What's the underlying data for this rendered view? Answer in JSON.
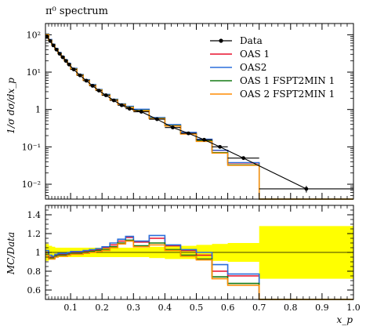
{
  "chart_data": [
    {
      "type": "line",
      "title": "π⁰ spectrum",
      "ylabel": "1/σ dσ/dx_p",
      "yscale": "log",
      "ylim": [
        0.004,
        200
      ],
      "xlim": [
        0.02,
        1.0
      ],
      "yticks": [
        {
          "value": 100,
          "label": "10²"
        },
        {
          "value": 10,
          "label": "10¹"
        },
        {
          "value": 1,
          "label": "1"
        },
        {
          "value": 0.1,
          "label": "10⁻¹"
        },
        {
          "value": 0.01,
          "label": "10⁻²"
        }
      ],
      "legend": {
        "placement": "top-right"
      },
      "bin_edges": [
        0.02,
        0.03,
        0.04,
        0.05,
        0.06,
        0.07,
        0.08,
        0.09,
        0.1,
        0.12,
        0.14,
        0.16,
        0.18,
        0.2,
        0.225,
        0.25,
        0.275,
        0.3,
        0.35,
        0.4,
        0.45,
        0.5,
        0.55,
        0.6,
        0.7,
        1.0
      ],
      "data": {
        "name": "Data",
        "x": [
          0.025,
          0.035,
          0.045,
          0.055,
          0.065,
          0.075,
          0.085,
          0.095,
          0.11,
          0.13,
          0.15,
          0.17,
          0.19,
          0.2125,
          0.2375,
          0.2625,
          0.2875,
          0.325,
          0.375,
          0.425,
          0.475,
          0.525,
          0.575,
          0.65,
          0.85
        ],
        "y": [
          90,
          68,
          52,
          40,
          31,
          25,
          20,
          16,
          11.8,
          8.2,
          5.9,
          4.3,
          3.2,
          2.4,
          1.75,
          1.3,
          1.05,
          0.87,
          0.55,
          0.33,
          0.23,
          0.155,
          0.1,
          0.05,
          0.0075
        ],
        "err": [
          4,
          3,
          2,
          1.5,
          1.2,
          1,
          0.8,
          0.6,
          0.4,
          0.3,
          0.2,
          0.15,
          0.1,
          0.08,
          0.06,
          0.05,
          0.04,
          0.03,
          0.02,
          0.015,
          0.01,
          0.007,
          0.005,
          0.003,
          0.0015
        ]
      },
      "series": [
        {
          "name": "OAS 1",
          "color": "#e8112d",
          "values": [
            105,
            74,
            55,
            42,
            33,
            26,
            21,
            17,
            12.5,
            8.6,
            6.2,
            4.6,
            3.4,
            2.5,
            1.85,
            1.4,
            1.2,
            1.0,
            0.6,
            0.39,
            0.24,
            0.158,
            0.08,
            0.037,
            0.0035
          ]
        },
        {
          "name": "OAS2",
          "color": "#2a6fdb",
          "values": [
            106,
            75,
            56,
            43,
            33.5,
            26.5,
            21.5,
            17.3,
            12.7,
            8.7,
            6.3,
            4.7,
            3.45,
            2.55,
            1.88,
            1.42,
            1.22,
            1.02,
            0.61,
            0.395,
            0.245,
            0.16,
            0.081,
            0.038,
            0.004
          ]
        },
        {
          "name": "OAS 1 FSPT2MIN 1",
          "color": "#157a15",
          "values": [
            103,
            72,
            54,
            41,
            32,
            25.5,
            20.5,
            16.5,
            12.2,
            8.4,
            6.05,
            4.5,
            3.35,
            2.45,
            1.82,
            1.38,
            1.16,
            0.95,
            0.58,
            0.37,
            0.225,
            0.145,
            0.07,
            0.033,
            0.003
          ]
        },
        {
          "name": "OAS 2 FSPT2MIN 1",
          "color": "#ff8c00",
          "values": [
            102,
            71,
            53.5,
            40.5,
            31.5,
            25,
            20,
            16.2,
            12,
            8.3,
            6,
            4.45,
            3.3,
            2.42,
            1.8,
            1.36,
            1.14,
            0.93,
            0.57,
            0.36,
            0.22,
            0.14,
            0.068,
            0.032,
            0.003
          ]
        }
      ]
    },
    {
      "type": "line",
      "ylabel": "MC/Data",
      "xlabel": "x_p",
      "xlim": [
        0.02,
        1.0
      ],
      "ylim": [
        0.5,
        1.5
      ],
      "xticks": [
        0.1,
        0.2,
        0.3,
        0.4,
        0.5,
        0.6,
        0.7,
        0.8,
        0.9,
        1.0
      ],
      "xtick_labels": [
        "0.1",
        "0.2",
        "0.3",
        "0.4",
        "0.5",
        "0.6",
        "0.7",
        "0.8",
        "0.9",
        "1.0"
      ],
      "yticks": [
        0.6,
        0.8,
        1.0,
        1.2,
        1.4
      ],
      "ytick_labels": [
        "0.6",
        "0.8",
        "1",
        "1.2",
        "1.4"
      ],
      "reference_line": 1.0,
      "band": {
        "color": "#ffff00",
        "halfwidth": [
          0.09,
          0.07,
          0.06,
          0.05,
          0.05,
          0.05,
          0.05,
          0.05,
          0.05,
          0.05,
          0.05,
          0.05,
          0.05,
          0.05,
          0.05,
          0.05,
          0.05,
          0.05,
          0.06,
          0.07,
          0.07,
          0.08,
          0.09,
          0.1,
          0.28
        ]
      },
      "series": [
        {
          "name": "OAS 1",
          "color": "#e8112d",
          "values": [
            1.0,
            0.95,
            0.95,
            0.97,
            0.98,
            0.98,
            0.98,
            0.99,
            1.0,
            1.0,
            1.01,
            1.02,
            1.03,
            1.05,
            1.08,
            1.12,
            1.16,
            1.11,
            1.15,
            1.07,
            1.02,
            0.97,
            0.8,
            0.75,
            0.5
          ]
        },
        {
          "name": "OAS2",
          "color": "#2a6fdb",
          "values": [
            1.02,
            0.97,
            0.96,
            0.98,
            0.99,
            0.99,
            0.99,
            1.0,
            1.01,
            1.01,
            1.02,
            1.03,
            1.04,
            1.06,
            1.1,
            1.14,
            1.17,
            1.12,
            1.18,
            1.08,
            1.03,
            1.0,
            0.87,
            0.77,
            0.5
          ]
        },
        {
          "name": "OAS 1 FSPT2MIN 1",
          "color": "#157a15",
          "values": [
            0.98,
            0.94,
            0.94,
            0.96,
            0.97,
            0.97,
            0.97,
            0.98,
            0.99,
            0.99,
            1.0,
            1.01,
            1.02,
            1.03,
            1.06,
            1.1,
            1.13,
            1.07,
            1.1,
            1.03,
            0.97,
            0.93,
            0.74,
            0.67,
            0.5
          ]
        },
        {
          "name": "OAS 2 FSPT2MIN 1",
          "color": "#ff8c00",
          "values": [
            0.97,
            0.93,
            0.93,
            0.95,
            0.96,
            0.96,
            0.96,
            0.97,
            0.98,
            0.98,
            0.99,
            1.0,
            1.01,
            1.02,
            1.05,
            1.09,
            1.12,
            1.06,
            1.08,
            1.02,
            0.96,
            0.92,
            0.72,
            0.65,
            0.5
          ]
        }
      ]
    }
  ]
}
